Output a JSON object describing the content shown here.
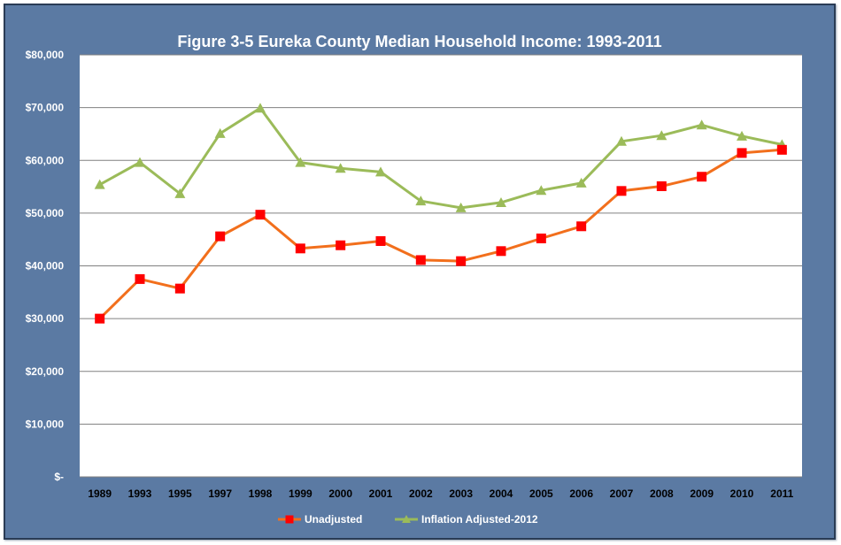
{
  "chart_data": {
    "type": "line",
    "title": "Figure 3-5 Eureka County Median Household Income:  1993-2011",
    "xlabel": "",
    "ylabel": "",
    "categories": [
      "1989",
      "1993",
      "1995",
      "1997",
      "1998",
      "1999",
      "2000",
      "2001",
      "2002",
      "2003",
      "2004",
      "2005",
      "2006",
      "2007",
      "2008",
      "2009",
      "2010",
      "2011"
    ],
    "y_tick_labels": [
      "$-",
      "$10,000",
      "$20,000",
      "$30,000",
      "$40,000",
      "$50,000",
      "$60,000",
      "$70,000",
      "$80,000"
    ],
    "ylim": [
      0,
      80000
    ],
    "grid": true,
    "legend_position": "bottom",
    "series": [
      {
        "name": "Unadjusted",
        "color": "#f26f1c",
        "marker": "square",
        "marker_color": "#ff0000",
        "values": [
          30000,
          37500,
          35700,
          45600,
          49700,
          43300,
          43900,
          44700,
          41100,
          40900,
          42800,
          45200,
          47500,
          54200,
          55100,
          56900,
          61400,
          62000
        ]
      },
      {
        "name": "Inflation Adjusted-2012",
        "color": "#9bbb59",
        "marker": "triangle",
        "marker_color": "#9bbb59",
        "values": [
          55400,
          59600,
          53700,
          65100,
          69900,
          59600,
          58500,
          57800,
          52300,
          51000,
          52000,
          54300,
          55700,
          63600,
          64700,
          66700,
          64600,
          63000
        ]
      }
    ]
  }
}
